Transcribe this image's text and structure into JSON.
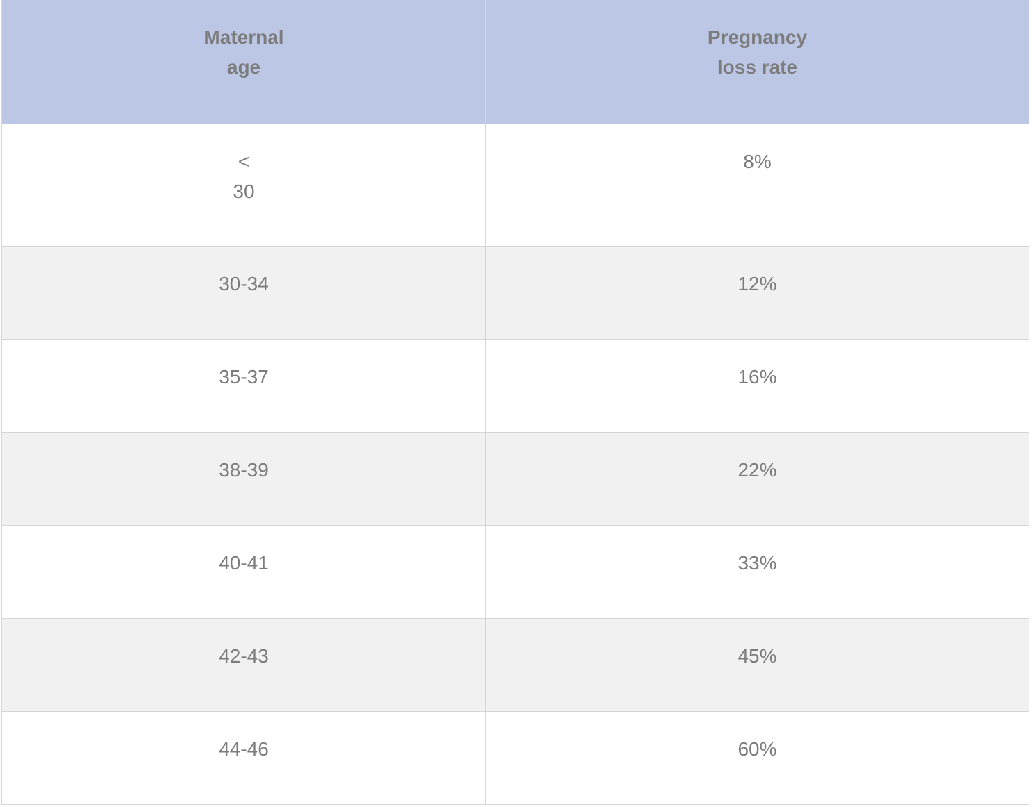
{
  "table": {
    "headers": {
      "age_line1": "Maternal",
      "age_line2": "age",
      "rate_line1": "Pregnancy",
      "rate_line2": "loss rate"
    },
    "rows": [
      {
        "age_line1": "<",
        "age_line2": "30",
        "rate": "8%"
      },
      {
        "age": "30-34",
        "rate": "12%"
      },
      {
        "age": "35-37",
        "rate": "16%"
      },
      {
        "age": "38-39",
        "rate": "22%"
      },
      {
        "age": "40-41",
        "rate": "33%"
      },
      {
        "age": "42-43",
        "rate": "45%"
      },
      {
        "age": "44-46",
        "rate": "60%"
      }
    ],
    "colors": {
      "header_bg": "#bcc7e6",
      "stripe_bg": "#f1f1f1",
      "text": "#7c7c7c",
      "border": "#d6d6d6"
    }
  }
}
